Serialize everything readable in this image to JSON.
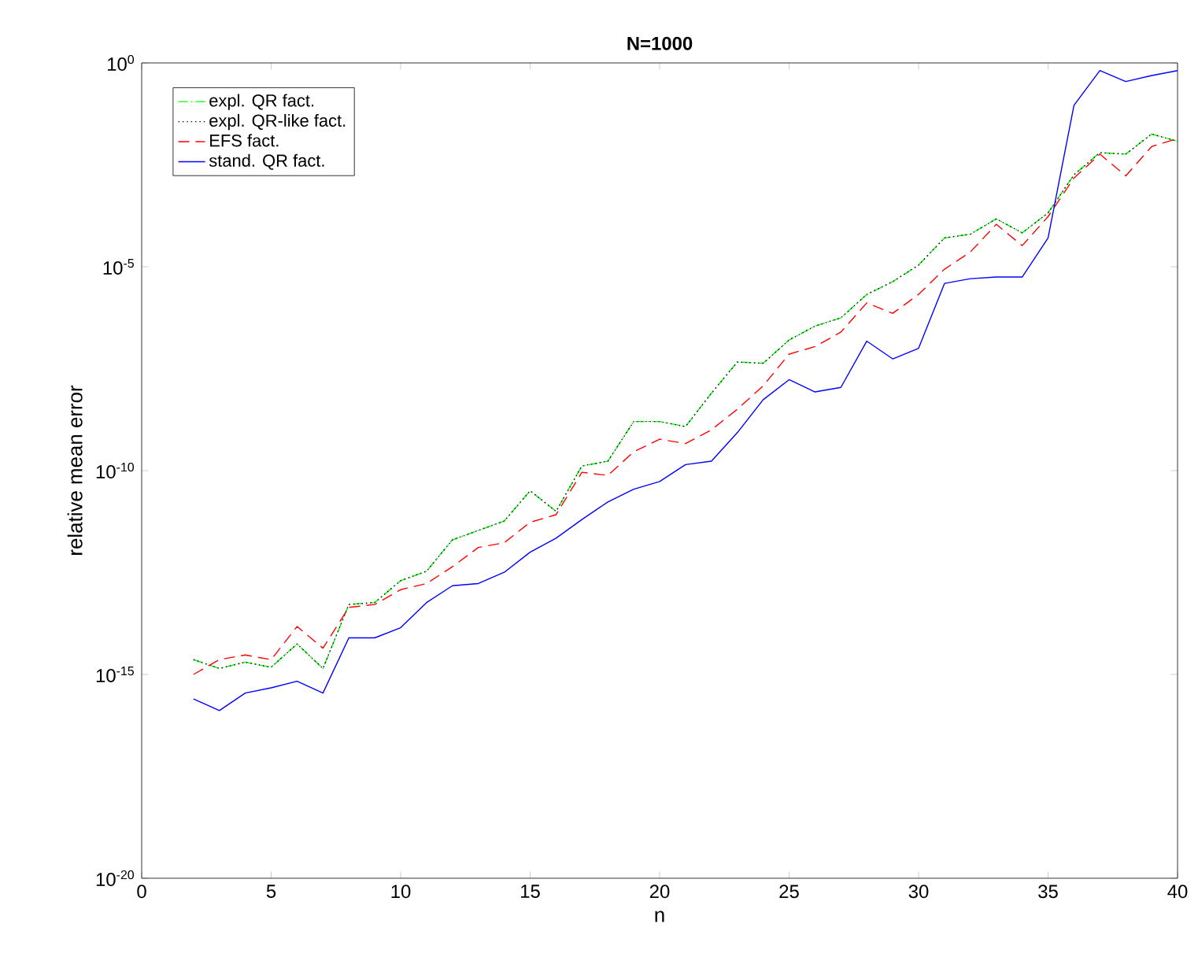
{
  "chart_data": {
    "type": "line",
    "title": "N=1000",
    "xlabel": "n",
    "ylabel": "relative mean error",
    "log": "y",
    "grid": false,
    "legend": "top left",
    "marker": "none",
    "x": [
      2,
      3,
      4,
      5,
      6,
      7,
      8,
      9,
      10,
      11,
      12,
      13,
      14,
      15,
      16,
      17,
      18,
      19,
      20,
      21,
      22,
      23,
      24,
      25,
      26,
      27,
      28,
      29,
      30,
      31,
      32,
      33,
      34,
      35,
      36,
      37,
      38,
      39,
      40
    ],
    "xlim": [
      0,
      40
    ],
    "ylim": [
      1e-20,
      1
    ],
    "xticks": [
      0,
      5,
      10,
      15,
      20,
      25,
      30,
      35,
      40
    ],
    "yticks": [
      {
        "value": 1e-20,
        "label": "10$^{-20}$"
      },
      {
        "value": 1e-15,
        "label": "10$^{-15}$"
      },
      {
        "value": 1e-10,
        "label": "10$^{-10}$"
      },
      {
        "value": 1e-05,
        "label": "10$^{-5}$"
      },
      {
        "value": 1,
        "label": "10$^{0}$"
      }
    ],
    "series": [
      {
        "name": "expl. QR fact.",
        "color": "#00ff00",
        "line_style": "dashdot",
        "values": [
          2.3e-15,
          1.4e-15,
          2e-15,
          1.5e-15,
          5.6e-15,
          1.4e-15,
          5.2e-14,
          5.8e-14,
          2e-13,
          3.4e-13,
          2e-12,
          3.4e-12,
          5.8e-12,
          3.2e-11,
          1e-11,
          1.3e-10,
          1.7e-10,
          1.6e-09,
          1.6e-09,
          1.2e-09,
          7.9e-09,
          4.6e-08,
          4.3e-08,
          1.6e-07,
          3.5e-07,
          5.6e-07,
          2.1e-06,
          4.3e-06,
          1.1e-05,
          5.1e-05,
          6.3e-05,
          0.00015,
          6.8e-05,
          0.00021,
          0.0018,
          0.0063,
          0.0058,
          0.018,
          0.012
        ]
      },
      {
        "name": "expl. QR-like fact.",
        "color": "#000000",
        "line_style": "dotted",
        "values": [
          2.3e-15,
          1.4e-15,
          2e-15,
          1.5e-15,
          5.6e-15,
          1.4e-15,
          5.2e-14,
          5.8e-14,
          2e-13,
          3.4e-13,
          2e-12,
          3.4e-12,
          5.8e-12,
          3.2e-11,
          1e-11,
          1.3e-10,
          1.7e-10,
          1.6e-09,
          1.6e-09,
          1.2e-09,
          7.9e-09,
          4.6e-08,
          4.3e-08,
          1.6e-07,
          3.5e-07,
          5.6e-07,
          2.1e-06,
          4.3e-06,
          1.1e-05,
          5.1e-05,
          6.3e-05,
          0.00015,
          6.8e-05,
          0.00021,
          0.0018,
          0.0063,
          0.0058,
          0.018,
          0.012
        ]
      },
      {
        "name": "EFS fact.",
        "color": "#ff0000",
        "line_style": "dashed",
        "values": [
          1e-15,
          2.3e-15,
          3e-15,
          2.3e-15,
          1.5e-14,
          4.4e-15,
          4.4e-14,
          5.2e-14,
          1.2e-13,
          1.7e-13,
          4.4e-13,
          1.3e-12,
          1.7e-12,
          5.4e-12,
          8.3e-12,
          9.1e-11,
          7.6e-11,
          2.9e-10,
          5.9e-10,
          4.6e-10,
          1e-09,
          3.2e-09,
          1.2e-08,
          7.2e-08,
          1.1e-07,
          2.5e-07,
          1.3e-06,
          7.2e-07,
          2.1e-06,
          8.7e-06,
          2.3e-05,
          0.00011,
          3.3e-05,
          0.00017,
          0.0015,
          0.0058,
          0.0017,
          0.0089,
          0.014
        ]
      },
      {
        "name": "stand. QR fact.",
        "color": "#0000ff",
        "line_style": "solid",
        "values": [
          2.5e-16,
          1.3e-16,
          3.5e-16,
          4.7e-16,
          6.8e-16,
          3.5e-16,
          7.9e-15,
          7.9e-15,
          1.4e-14,
          5.8e-14,
          1.5e-13,
          1.7e-13,
          3.2e-13,
          1e-12,
          2.2e-12,
          6.3e-12,
          1.7e-11,
          3.5e-11,
          5.4e-11,
          1.4e-10,
          1.7e-10,
          8.5e-10,
          5.5e-09,
          1.7e-08,
          8.5e-09,
          1.1e-08,
          1.5e-07,
          5.5e-08,
          1e-07,
          3.9e-06,
          5.1e-06,
          5.6e-06,
          5.6e-06,
          5.1e-05,
          0.091,
          0.65,
          0.35,
          0.49,
          0.65
        ]
      }
    ]
  }
}
